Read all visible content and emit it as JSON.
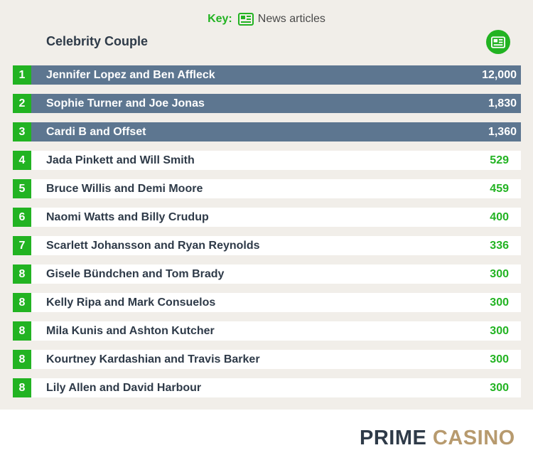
{
  "key": {
    "label": "Key:",
    "icon": "newspaper-icon",
    "text": "News articles"
  },
  "header": {
    "column_label": "Celebrity Couple",
    "value_icon": "newspaper-icon"
  },
  "colors": {
    "accent": "#22b322",
    "top_bar": "#5d7690",
    "row_bg": "#ffffff",
    "panel_bg": "#f1eee9"
  },
  "chart_data": {
    "type": "bar",
    "series": [
      {
        "values": [
          12000,
          1830,
          1360,
          529,
          459,
          400,
          336,
          300,
          300,
          300,
          300,
          300
        ]
      }
    ],
    "rows": [
      {
        "rank": "1",
        "name": "Jennifer Lopez and Ben Affleck",
        "value": "12,000"
      },
      {
        "rank": "2",
        "name": "Sophie Turner and Joe Jonas",
        "value": "1,830"
      },
      {
        "rank": "3",
        "name": "Cardi B and Offset",
        "value": "1,360"
      },
      {
        "rank": "4",
        "name": "Jada Pinkett and Will Smith",
        "value": "529"
      },
      {
        "rank": "5",
        "name": "Bruce Willis and Demi Moore",
        "value": "459"
      },
      {
        "rank": "6",
        "name": "Naomi Watts and Billy Crudup",
        "value": "400"
      },
      {
        "rank": "7",
        "name": "Scarlett Johansson and Ryan Reynolds",
        "value": "336"
      },
      {
        "rank": "8",
        "name": "Gisele Bündchen and Tom Brady",
        "value": "300"
      },
      {
        "rank": "8",
        "name": "Kelly Ripa and Mark Consuelos",
        "value": "300"
      },
      {
        "rank": "8",
        "name": "Mila Kunis and Ashton Kutcher",
        "value": "300"
      },
      {
        "rank": "8",
        "name": "Kourtney Kardashian and Travis Barker",
        "value": "300"
      },
      {
        "rank": "8",
        "name": "Lily Allen and David Harbour",
        "value": "300"
      }
    ],
    "highlighted_top": 3
  },
  "brand": {
    "part1": "PRIME",
    "part2": "CASINO"
  }
}
